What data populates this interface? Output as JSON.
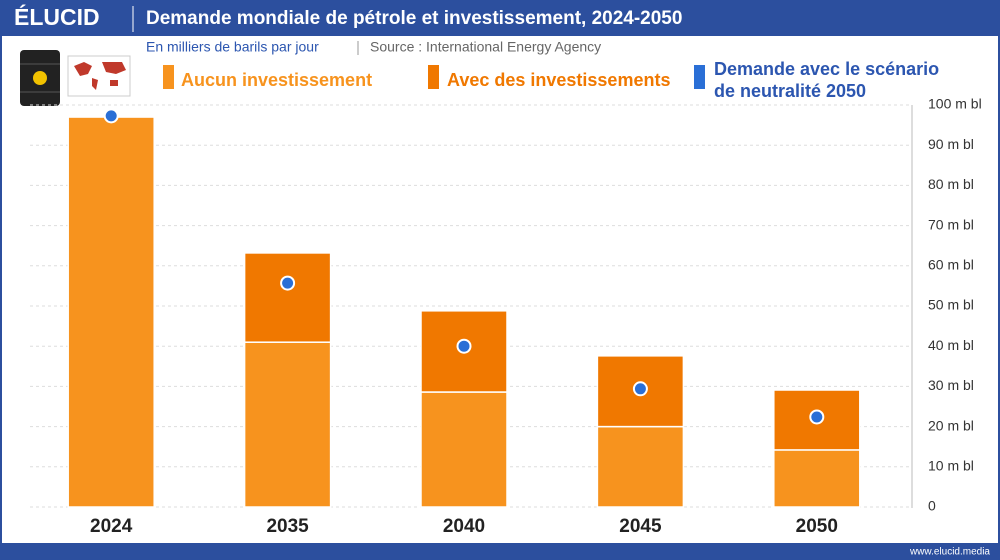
{
  "header": {
    "logo": "ÉLUCID",
    "footer": "www.elucid.media"
  },
  "chart_data": {
    "type": "bar",
    "stacked": true,
    "title": "Demande mondiale de pétrole et investissement, 2024-2050",
    "subtitle": "En milliers de barils par jour",
    "source": "Source : International Energy Agency",
    "categories": [
      "2024",
      "2035",
      "2040",
      "2045",
      "2050"
    ],
    "series": [
      {
        "name": "Aucun investissement",
        "color": "#f7931e",
        "values": [
          97,
          41,
          28.6,
          20,
          14.2
        ]
      },
      {
        "name": "Avec des investissements",
        "color": "#f07800",
        "values": [
          0,
          22.2,
          20.2,
          17.6,
          14.9
        ]
      },
      {
        "name": "Demande avec le scénario de neutralité 2050",
        "color": "#2a6fd6",
        "type": "scatter",
        "values": [
          97.3,
          55.7,
          40,
          29.4,
          22.4
        ]
      }
    ],
    "ylim": [
      0,
      100
    ],
    "yticks": [
      0,
      {
        "value": 10,
        "label": "10 m bl"
      },
      {
        "value": 20,
        "label": "20 m bl"
      },
      {
        "value": 30,
        "label": "30 m bl"
      },
      {
        "value": 40,
        "label": "40 m bl"
      },
      {
        "value": 50,
        "label": "50 m bl"
      },
      {
        "value": 60,
        "label": "60 m bl"
      },
      {
        "value": 70,
        "label": "70 m bl"
      },
      {
        "value": 80,
        "label": "80 m bl"
      },
      {
        "value": 90,
        "label": "90 m bl"
      },
      {
        "value": 100,
        "label": "100 m bl"
      }
    ],
    "grid": true,
    "axis_side": "right"
  }
}
